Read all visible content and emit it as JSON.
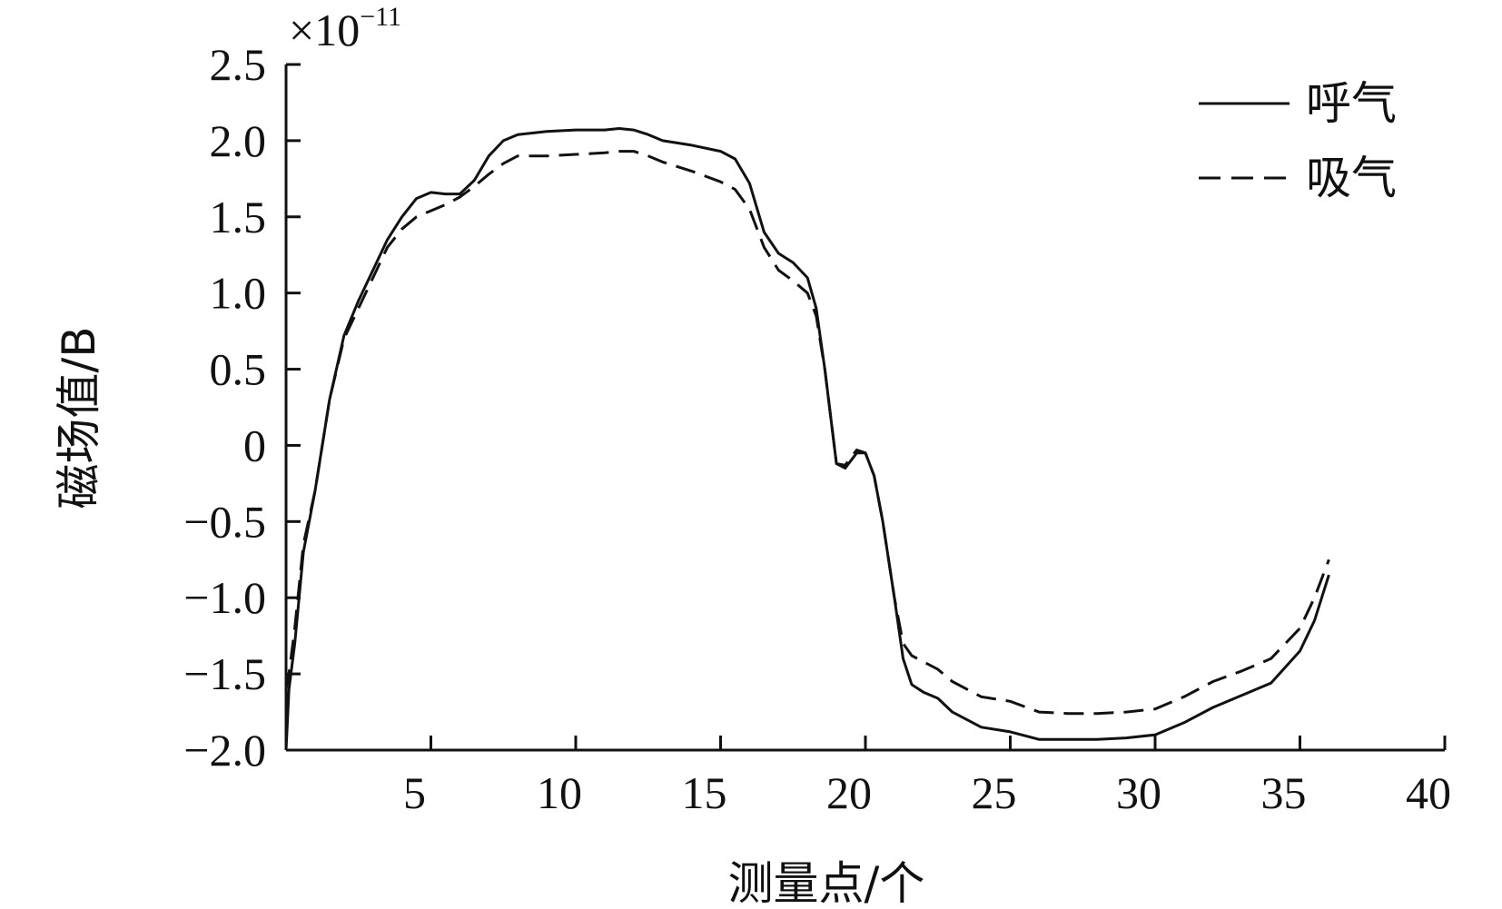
{
  "chart_data": {
    "type": "line",
    "title": "",
    "xlabel": "测量点/个",
    "ylabel": "磁场值/B",
    "y_multiplier": {
      "base": "×10",
      "exponent": "−11"
    },
    "xlim": [
      0,
      40
    ],
    "ylim": [
      -2.0,
      2.5
    ],
    "xticks": [
      5,
      10,
      15,
      20,
      25,
      30,
      35,
      40
    ],
    "yticks": [
      -2.0,
      -1.5,
      -1.0,
      -0.5,
      0,
      0.5,
      1.0,
      1.5,
      2.0,
      2.5
    ],
    "ytick_labels": [
      "−2.0",
      "−1.5",
      "−1.0",
      "−0.5",
      "0",
      "0.5",
      "1.0",
      "1.5",
      "2.0",
      "2.5"
    ],
    "xtick_labels": [
      "5",
      "10",
      "15",
      "20",
      "25",
      "30",
      "35",
      "40"
    ],
    "grid": false,
    "legend_position": "top-right",
    "series": [
      {
        "name": "呼气",
        "style": "solid",
        "color": "#111111",
        "x": [
          0,
          0.1,
          0.3,
          0.6,
          1,
          1.5,
          2,
          2.5,
          3,
          3.5,
          4,
          4.5,
          5,
          5.5,
          6,
          6.5,
          7,
          7.5,
          8,
          9,
          10,
          11,
          11.5,
          12,
          12.5,
          13,
          14,
          15,
          15.5,
          16,
          16.5,
          17,
          17.5,
          18,
          18.3,
          18.6,
          19,
          19.3,
          19.7,
          20,
          20.3,
          20.6,
          21,
          21.3,
          21.6,
          22,
          22.5,
          23,
          24,
          25,
          26,
          27,
          28,
          29,
          30,
          31,
          32,
          33,
          34,
          35,
          35.5,
          36
        ],
        "y": [
          -2.0,
          -1.6,
          -1.3,
          -0.7,
          -0.3,
          0.3,
          0.72,
          0.95,
          1.15,
          1.35,
          1.5,
          1.62,
          1.66,
          1.65,
          1.65,
          1.74,
          1.9,
          2.0,
          2.04,
          2.06,
          2.07,
          2.07,
          2.08,
          2.07,
          2.04,
          2.0,
          1.97,
          1.93,
          1.88,
          1.72,
          1.4,
          1.26,
          1.2,
          1.1,
          0.9,
          0.5,
          -0.12,
          -0.15,
          -0.05,
          -0.05,
          -0.2,
          -0.5,
          -1.0,
          -1.4,
          -1.57,
          -1.62,
          -1.66,
          -1.75,
          -1.85,
          -1.88,
          -1.93,
          -1.93,
          -1.93,
          -1.92,
          -1.9,
          -1.82,
          -1.72,
          -1.64,
          -1.56,
          -1.35,
          -1.15,
          -0.85
        ]
      },
      {
        "name": "吸气",
        "style": "dashed",
        "color": "#111111",
        "x": [
          0,
          0.1,
          0.3,
          0.6,
          1,
          1.5,
          2,
          2.5,
          3,
          3.5,
          4,
          4.5,
          5,
          5.5,
          6,
          6.5,
          7,
          7.5,
          8,
          9,
          10,
          11,
          11.5,
          12,
          12.5,
          13,
          14,
          15,
          15.5,
          16,
          16.5,
          17,
          17.5,
          18,
          18.3,
          18.6,
          19,
          19.3,
          19.7,
          20,
          20.3,
          20.6,
          21,
          21.3,
          21.6,
          22,
          22.5,
          23,
          24,
          25,
          26,
          27,
          28,
          29,
          30,
          31,
          32,
          33,
          34,
          35,
          35.5,
          36
        ],
        "y": [
          -1.6,
          -1.5,
          -1.2,
          -0.65,
          -0.3,
          0.3,
          0.7,
          0.9,
          1.1,
          1.3,
          1.42,
          1.5,
          1.54,
          1.58,
          1.63,
          1.7,
          1.78,
          1.85,
          1.9,
          1.9,
          1.91,
          1.92,
          1.93,
          1.93,
          1.9,
          1.86,
          1.8,
          1.73,
          1.68,
          1.55,
          1.3,
          1.15,
          1.08,
          1.0,
          0.85,
          0.5,
          -0.12,
          -0.13,
          -0.03,
          -0.05,
          -0.2,
          -0.5,
          -1.0,
          -1.3,
          -1.38,
          -1.42,
          -1.47,
          -1.55,
          -1.65,
          -1.68,
          -1.75,
          -1.76,
          -1.76,
          -1.75,
          -1.73,
          -1.65,
          -1.55,
          -1.48,
          -1.4,
          -1.2,
          -1.0,
          -0.75
        ]
      }
    ]
  }
}
